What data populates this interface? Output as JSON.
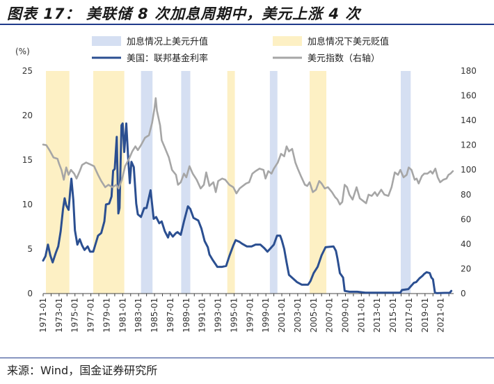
{
  "title": "图表 17： 美联储 8 次加息周期中，美元上涨 4 次",
  "source": "来源：Wind，国金证券研究所",
  "chart_data": {
    "type": "line",
    "y_unit_label": "(%)",
    "y_left": {
      "min": 0,
      "max": 25,
      "ticks": [
        0,
        5,
        10,
        15,
        20,
        25
      ]
    },
    "y_right": {
      "min": 0,
      "max": 180,
      "ticks": [
        0,
        20,
        40,
        60,
        80,
        100,
        120,
        140,
        160,
        180
      ]
    },
    "x_range": [
      1971,
      2022.6
    ],
    "x_tick_labels": [
      "1971-01",
      "1973-01",
      "1975-01",
      "1977-01",
      "1979-01",
      "1981-01",
      "1983-01",
      "1985-01",
      "1987-01",
      "1989-01",
      "1991-01",
      "1993-01",
      "1995-01",
      "1997-01",
      "1999-01",
      "2001-01",
      "2003-01",
      "2005-01",
      "2007-01",
      "2009-01",
      "2011-01",
      "2013-01",
      "2015-01",
      "2017-01",
      "2019-01",
      "2021-01"
    ],
    "legend": [
      {
        "label": "加息情况上美元升值",
        "type": "band",
        "color": "#d5dff2"
      },
      {
        "label": "加息情况下美元贬值",
        "type": "band",
        "color": "#fdf0c4"
      },
      {
        "label": "美国：联邦基金利率",
        "type": "line",
        "color": "#2b4f91",
        "axis": "left"
      },
      {
        "label": "美元指数（右轴）",
        "type": "line",
        "color": "#a6a6a6",
        "axis": "right"
      }
    ],
    "bands_usd_up": [
      [
        1983.3,
        1984.75
      ],
      [
        1988.35,
        1989.5
      ],
      [
        1999.5,
        2000.45
      ],
      [
        2015.95,
        2017.2
      ]
    ],
    "bands_usd_down": [
      [
        1971.35,
        1974.3
      ],
      [
        1977.3,
        1981.2
      ],
      [
        1994.15,
        1995.1
      ],
      [
        2004.5,
        2006.6
      ]
    ],
    "series": [
      {
        "name": "美国：联邦基金利率",
        "axis": "left",
        "points": [
          [
            1971.0,
            3.7
          ],
          [
            1971.3,
            4.2
          ],
          [
            1971.6,
            5.5
          ],
          [
            1971.9,
            4.3
          ],
          [
            1972.2,
            3.5
          ],
          [
            1972.6,
            4.6
          ],
          [
            1972.9,
            5.3
          ],
          [
            1973.2,
            7.0
          ],
          [
            1973.5,
            9.5
          ],
          [
            1973.7,
            10.7
          ],
          [
            1973.9,
            9.9
          ],
          [
            1974.2,
            9.4
          ],
          [
            1974.4,
            11.5
          ],
          [
            1974.55,
            12.9
          ],
          [
            1974.8,
            10.5
          ],
          [
            1975.0,
            7.1
          ],
          [
            1975.3,
            5.5
          ],
          [
            1975.6,
            6.1
          ],
          [
            1975.9,
            5.4
          ],
          [
            1976.2,
            4.9
          ],
          [
            1976.6,
            5.3
          ],
          [
            1976.9,
            4.7
          ],
          [
            1977.3,
            4.7
          ],
          [
            1977.7,
            5.9
          ],
          [
            1977.9,
            6.5
          ],
          [
            1978.3,
            6.8
          ],
          [
            1978.7,
            8.1
          ],
          [
            1978.9,
            10.0
          ],
          [
            1979.3,
            10.1
          ],
          [
            1979.6,
            10.9
          ],
          [
            1979.8,
            13.8
          ],
          [
            1980.0,
            14.0
          ],
          [
            1980.25,
            17.6
          ],
          [
            1980.45,
            9.0
          ],
          [
            1980.6,
            9.6
          ],
          [
            1980.85,
            18.9
          ],
          [
            1981.0,
            19.1
          ],
          [
            1981.2,
            15.9
          ],
          [
            1981.45,
            19.1
          ],
          [
            1981.7,
            15.1
          ],
          [
            1981.9,
            12.4
          ],
          [
            1982.1,
            14.8
          ],
          [
            1982.4,
            14.2
          ],
          [
            1982.7,
            10.1
          ],
          [
            1982.9,
            8.9
          ],
          [
            1983.3,
            8.6
          ],
          [
            1983.7,
            9.6
          ],
          [
            1984.0,
            9.6
          ],
          [
            1984.5,
            11.6
          ],
          [
            1984.9,
            8.4
          ],
          [
            1985.2,
            8.6
          ],
          [
            1985.6,
            7.9
          ],
          [
            1985.9,
            8.1
          ],
          [
            1986.3,
            7.0
          ],
          [
            1986.7,
            6.3
          ],
          [
            1986.9,
            6.9
          ],
          [
            1987.3,
            6.4
          ],
          [
            1987.7,
            6.8
          ],
          [
            1987.9,
            6.9
          ],
          [
            1988.3,
            6.6
          ],
          [
            1988.7,
            8.1
          ],
          [
            1989.2,
            9.8
          ],
          [
            1989.5,
            9.5
          ],
          [
            1989.9,
            8.5
          ],
          [
            1990.5,
            8.2
          ],
          [
            1990.9,
            7.3
          ],
          [
            1991.3,
            5.9
          ],
          [
            1991.7,
            5.2
          ],
          [
            1991.9,
            4.4
          ],
          [
            1992.3,
            3.8
          ],
          [
            1992.9,
            3.0
          ],
          [
            1993.5,
            3.0
          ],
          [
            1994.0,
            3.1
          ],
          [
            1994.4,
            4.2
          ],
          [
            1994.9,
            5.4
          ],
          [
            1995.2,
            6.0
          ],
          [
            1995.7,
            5.8
          ],
          [
            1996.0,
            5.6
          ],
          [
            1996.6,
            5.3
          ],
          [
            1997.2,
            5.3
          ],
          [
            1997.7,
            5.5
          ],
          [
            1998.3,
            5.5
          ],
          [
            1998.8,
            5.1
          ],
          [
            1999.2,
            4.7
          ],
          [
            1999.6,
            5.1
          ],
          [
            2000.0,
            5.5
          ],
          [
            2000.4,
            6.5
          ],
          [
            2000.8,
            6.5
          ],
          [
            2001.0,
            6.0
          ],
          [
            2001.3,
            5.0
          ],
          [
            2001.6,
            3.5
          ],
          [
            2001.9,
            2.1
          ],
          [
            2002.4,
            1.7
          ],
          [
            2002.9,
            1.3
          ],
          [
            2003.5,
            1.0
          ],
          [
            2004.3,
            1.0
          ],
          [
            2004.6,
            1.4
          ],
          [
            2005.0,
            2.3
          ],
          [
            2005.5,
            3.0
          ],
          [
            2006.0,
            4.3
          ],
          [
            2006.5,
            5.2
          ],
          [
            2007.5,
            5.3
          ],
          [
            2007.8,
            4.8
          ],
          [
            2008.0,
            3.9
          ],
          [
            2008.3,
            2.3
          ],
          [
            2008.7,
            1.8
          ],
          [
            2008.9,
            0.3
          ],
          [
            2009.5,
            0.2
          ],
          [
            2010.5,
            0.2
          ],
          [
            2011.5,
            0.1
          ],
          [
            2013.0,
            0.1
          ],
          [
            2014.5,
            0.1
          ],
          [
            2015.9,
            0.1
          ],
          [
            2016.1,
            0.4
          ],
          [
            2016.9,
            0.5
          ],
          [
            2017.3,
            0.9
          ],
          [
            2017.6,
            1.2
          ],
          [
            2017.9,
            1.3
          ],
          [
            2018.3,
            1.7
          ],
          [
            2018.7,
            2.0
          ],
          [
            2018.9,
            2.2
          ],
          [
            2019.2,
            2.4
          ],
          [
            2019.6,
            2.3
          ],
          [
            2019.8,
            1.8
          ],
          [
            2020.0,
            1.6
          ],
          [
            2020.25,
            0.1
          ],
          [
            2020.5,
            0.05
          ],
          [
            2021.5,
            0.08
          ],
          [
            2022.1,
            0.08
          ],
          [
            2022.3,
            0.3
          ]
        ]
      },
      {
        "name": "美元指数（右轴）",
        "axis": "right",
        "points": [
          [
            1971.0,
            120.5
          ],
          [
            1971.4,
            120.0
          ],
          [
            1971.8,
            116.0
          ],
          [
            1972.3,
            110.0
          ],
          [
            1972.8,
            109.0
          ],
          [
            1973.0,
            105.0
          ],
          [
            1973.3,
            100.0
          ],
          [
            1973.6,
            92.0
          ],
          [
            1973.9,
            102.0
          ],
          [
            1974.2,
            96.0
          ],
          [
            1974.5,
            100.0
          ],
          [
            1974.9,
            97.0
          ],
          [
            1975.2,
            93.0
          ],
          [
            1975.6,
            99.0
          ],
          [
            1975.9,
            104.0
          ],
          [
            1976.4,
            106.0
          ],
          [
            1976.9,
            104.5
          ],
          [
            1977.4,
            103.0
          ],
          [
            1977.9,
            96.0
          ],
          [
            1978.3,
            91.0
          ],
          [
            1978.8,
            86.0
          ],
          [
            1979.2,
            88.0
          ],
          [
            1979.7,
            86.0
          ],
          [
            1980.2,
            88.0
          ],
          [
            1980.5,
            85.0
          ],
          [
            1980.9,
            92.0
          ],
          [
            1981.3,
            103.0
          ],
          [
            1981.8,
            109.0
          ],
          [
            1982.2,
            115.0
          ],
          [
            1982.6,
            119.0
          ],
          [
            1982.9,
            116.0
          ],
          [
            1983.3,
            120.0
          ],
          [
            1983.8,
            126.0
          ],
          [
            1984.3,
            128.0
          ],
          [
            1984.7,
            138.0
          ],
          [
            1985.0,
            150.0
          ],
          [
            1985.15,
            158.0
          ],
          [
            1985.3,
            148.0
          ],
          [
            1985.7,
            136.0
          ],
          [
            1985.9,
            124.0
          ],
          [
            1986.3,
            118.0
          ],
          [
            1986.8,
            110.0
          ],
          [
            1987.2,
            100.0
          ],
          [
            1987.7,
            96.0
          ],
          [
            1987.95,
            88.0
          ],
          [
            1988.3,
            90.0
          ],
          [
            1988.7,
            97.0
          ],
          [
            1989.0,
            94.0
          ],
          [
            1989.4,
            103.0
          ],
          [
            1989.8,
            97.0
          ],
          [
            1990.3,
            92.0
          ],
          [
            1990.8,
            85.0
          ],
          [
            1991.2,
            88.0
          ],
          [
            1991.5,
            98.0
          ],
          [
            1991.9,
            87.0
          ],
          [
            1992.4,
            90.0
          ],
          [
            1992.7,
            82.0
          ],
          [
            1993.0,
            91.0
          ],
          [
            1993.5,
            93.0
          ],
          [
            1993.9,
            92.0
          ],
          [
            1994.4,
            88.0
          ],
          [
            1994.9,
            86.0
          ],
          [
            1995.3,
            81.0
          ],
          [
            1995.7,
            85.0
          ],
          [
            1996.1,
            87.0
          ],
          [
            1996.5,
            89.0
          ],
          [
            1996.9,
            90.0
          ],
          [
            1997.3,
            97.0
          ],
          [
            1997.7,
            99.0
          ],
          [
            1998.2,
            101.0
          ],
          [
            1998.7,
            100.0
          ],
          [
            1998.95,
            93.0
          ],
          [
            1999.3,
            99.0
          ],
          [
            1999.7,
            97.0
          ],
          [
            2000.0,
            101.0
          ],
          [
            2000.5,
            106.0
          ],
          [
            2000.9,
            113.0
          ],
          [
            2001.3,
            111.0
          ],
          [
            2001.6,
            119.0
          ],
          [
            2001.9,
            115.0
          ],
          [
            2002.3,
            117.0
          ],
          [
            2002.7,
            106.0
          ],
          [
            2003.0,
            101.0
          ],
          [
            2003.4,
            95.0
          ],
          [
            2003.9,
            88.0
          ],
          [
            2004.2,
            87.0
          ],
          [
            2004.5,
            90.0
          ],
          [
            2004.9,
            82.0
          ],
          [
            2005.3,
            84.0
          ],
          [
            2005.7,
            91.0
          ],
          [
            2006.0,
            89.0
          ],
          [
            2006.4,
            85.0
          ],
          [
            2006.8,
            86.0
          ],
          [
            2007.3,
            82.0
          ],
          [
            2007.7,
            78.0
          ],
          [
            2008.0,
            76.0
          ],
          [
            2008.3,
            72.0
          ],
          [
            2008.6,
            74.0
          ],
          [
            2008.9,
            88.0
          ],
          [
            2009.2,
            86.0
          ],
          [
            2009.5,
            80.0
          ],
          [
            2009.9,
            76.0
          ],
          [
            2010.4,
            86.0
          ],
          [
            2010.8,
            77.0
          ],
          [
            2011.2,
            75.0
          ],
          [
            2011.6,
            73.0
          ],
          [
            2011.9,
            80.0
          ],
          [
            2012.3,
            79.0
          ],
          [
            2012.7,
            82.0
          ],
          [
            2013.0,
            79.0
          ],
          [
            2013.5,
            84.0
          ],
          [
            2013.9,
            80.0
          ],
          [
            2014.4,
            79.0
          ],
          [
            2014.8,
            86.0
          ],
          [
            2015.2,
            98.0
          ],
          [
            2015.6,
            96.0
          ],
          [
            2015.9,
            100.0
          ],
          [
            2016.3,
            94.0
          ],
          [
            2016.7,
            96.0
          ],
          [
            2016.95,
            102.0
          ],
          [
            2017.3,
            100.0
          ],
          [
            2017.7,
            92.0
          ],
          [
            2017.95,
            93.0
          ],
          [
            2018.2,
            89.0
          ],
          [
            2018.6,
            95.0
          ],
          [
            2018.9,
            97.0
          ],
          [
            2019.3,
            97.0
          ],
          [
            2019.7,
            99.0
          ],
          [
            2019.95,
            97.0
          ],
          [
            2020.3,
            101.0
          ],
          [
            2020.6,
            94.0
          ],
          [
            2020.9,
            90.0
          ],
          [
            2021.3,
            92.0
          ],
          [
            2021.7,
            93.0
          ],
          [
            2021.95,
            96.0
          ],
          [
            2022.2,
            97.0
          ],
          [
            2022.5,
            99.0
          ]
        ]
      }
    ]
  }
}
